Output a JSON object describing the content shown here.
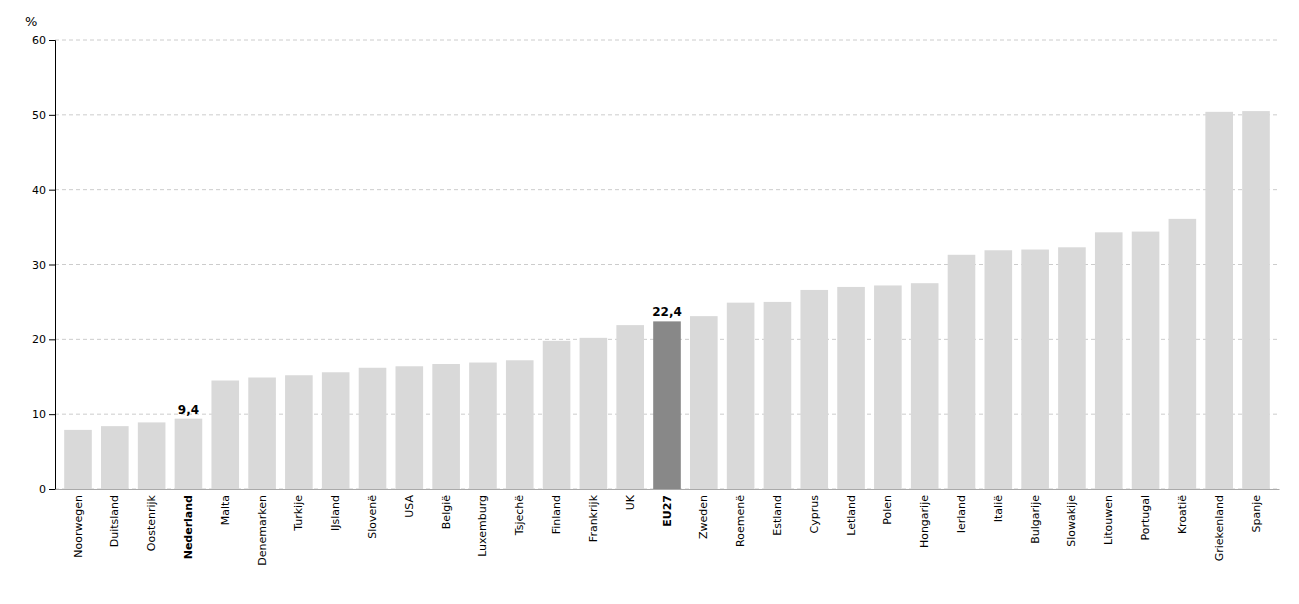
{
  "chart_data": {
    "type": "bar",
    "categories": [
      "Noorwegen",
      "Duitsland",
      "Oostenrijk",
      "Nederland",
      "Malta",
      "Denemarken",
      "Turkije",
      "IJsland",
      "Slovenë",
      "USA",
      "België",
      "Luxemburg",
      "Tsjechë",
      "Finland",
      "Frankrijk",
      "UK",
      "EU27",
      "Zweden",
      "Roemenë",
      "Estland",
      "Cyprus",
      "Letland",
      "Polen",
      "Hongarije",
      "Ierland",
      "Italië",
      "Bulgarije",
      "Slowakije",
      "Litouwen",
      "Portugal",
      "Kroatië",
      "Griekenland",
      "Spanje"
    ],
    "values": [
      7.9,
      8.4,
      8.9,
      9.4,
      14.5,
      14.9,
      15.2,
      15.6,
      16.2,
      16.4,
      16.7,
      16.9,
      17.2,
      19.8,
      20.2,
      21.9,
      22.4,
      23.1,
      24.9,
      25.0,
      26.6,
      27.0,
      27.2,
      27.5,
      31.3,
      31.9,
      32.0,
      32.3,
      34.3,
      34.4,
      36.1,
      50.4,
      50.5
    ],
    "colors": [
      "#d9d9d9",
      "#d9d9d9",
      "#d9d9d9",
      "#d9d9d9",
      "#d9d9d9",
      "#d9d9d9",
      "#d9d9d9",
      "#d9d9d9",
      "#d9d9d9",
      "#d9d9d9",
      "#d9d9d9",
      "#d9d9d9",
      "#d9d9d9",
      "#d9d9d9",
      "#d9d9d9",
      "#d9d9d9",
      "#888888",
      "#d9d9d9",
      "#d9d9d9",
      "#d9d9d9",
      "#d9d9d9",
      "#d9d9d9",
      "#d9d9d9",
      "#d9d9d9",
      "#d9d9d9",
      "#d9d9d9",
      "#d9d9d9",
      "#d9d9d9",
      "#d9d9d9",
      "#d9d9d9",
      "#d9d9d9",
      "#d9d9d9",
      "#d9d9d9"
    ],
    "ylabel": "%",
    "annotations": [
      {
        "category": "Nederland",
        "value": 9.4,
        "label": "9,4"
      },
      {
        "category": "EU27",
        "value": 22.4,
        "label": "22,4"
      }
    ],
    "ylim": [
      0,
      60
    ],
    "yticks": [
      0,
      10,
      20,
      30,
      40,
      50,
      60
    ],
    "grid": true
  }
}
